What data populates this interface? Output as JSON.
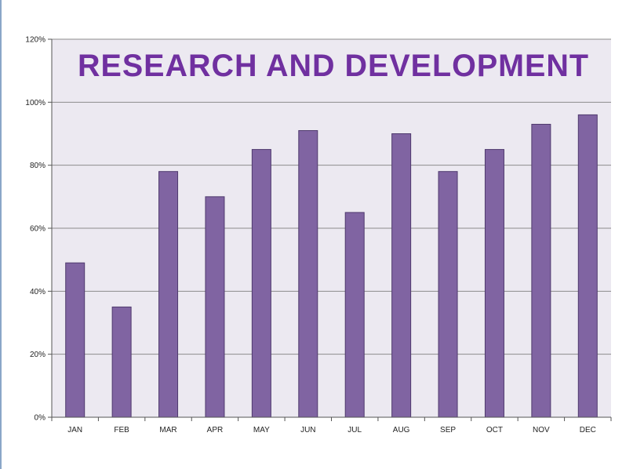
{
  "chart_data": {
    "type": "bar",
    "title": "RESEARCH AND DEVELOPMENT",
    "xlabel": "",
    "ylabel": "",
    "categories": [
      "JAN",
      "FEB",
      "MAR",
      "APR",
      "MAY",
      "JUN",
      "JUL",
      "AUG",
      "SEP",
      "OCT",
      "NOV",
      "DEC"
    ],
    "values": [
      49,
      35,
      78,
      70,
      85,
      91,
      65,
      90,
      78,
      85,
      93,
      96
    ],
    "ylim": [
      0,
      120
    ],
    "yticks": [
      "0%",
      "20%",
      "40%",
      "60%",
      "80%",
      "100%",
      "120%"
    ],
    "ytick_values": [
      0,
      20,
      40,
      60,
      80,
      100,
      120
    ],
    "grid": true,
    "legend": "none",
    "colors": {
      "bar": "#8064a2",
      "bar_border": "#4f3a6e",
      "plot_background": "#ece9f1",
      "gridline": "#8c8c8c",
      "title": "#7030a0"
    }
  }
}
